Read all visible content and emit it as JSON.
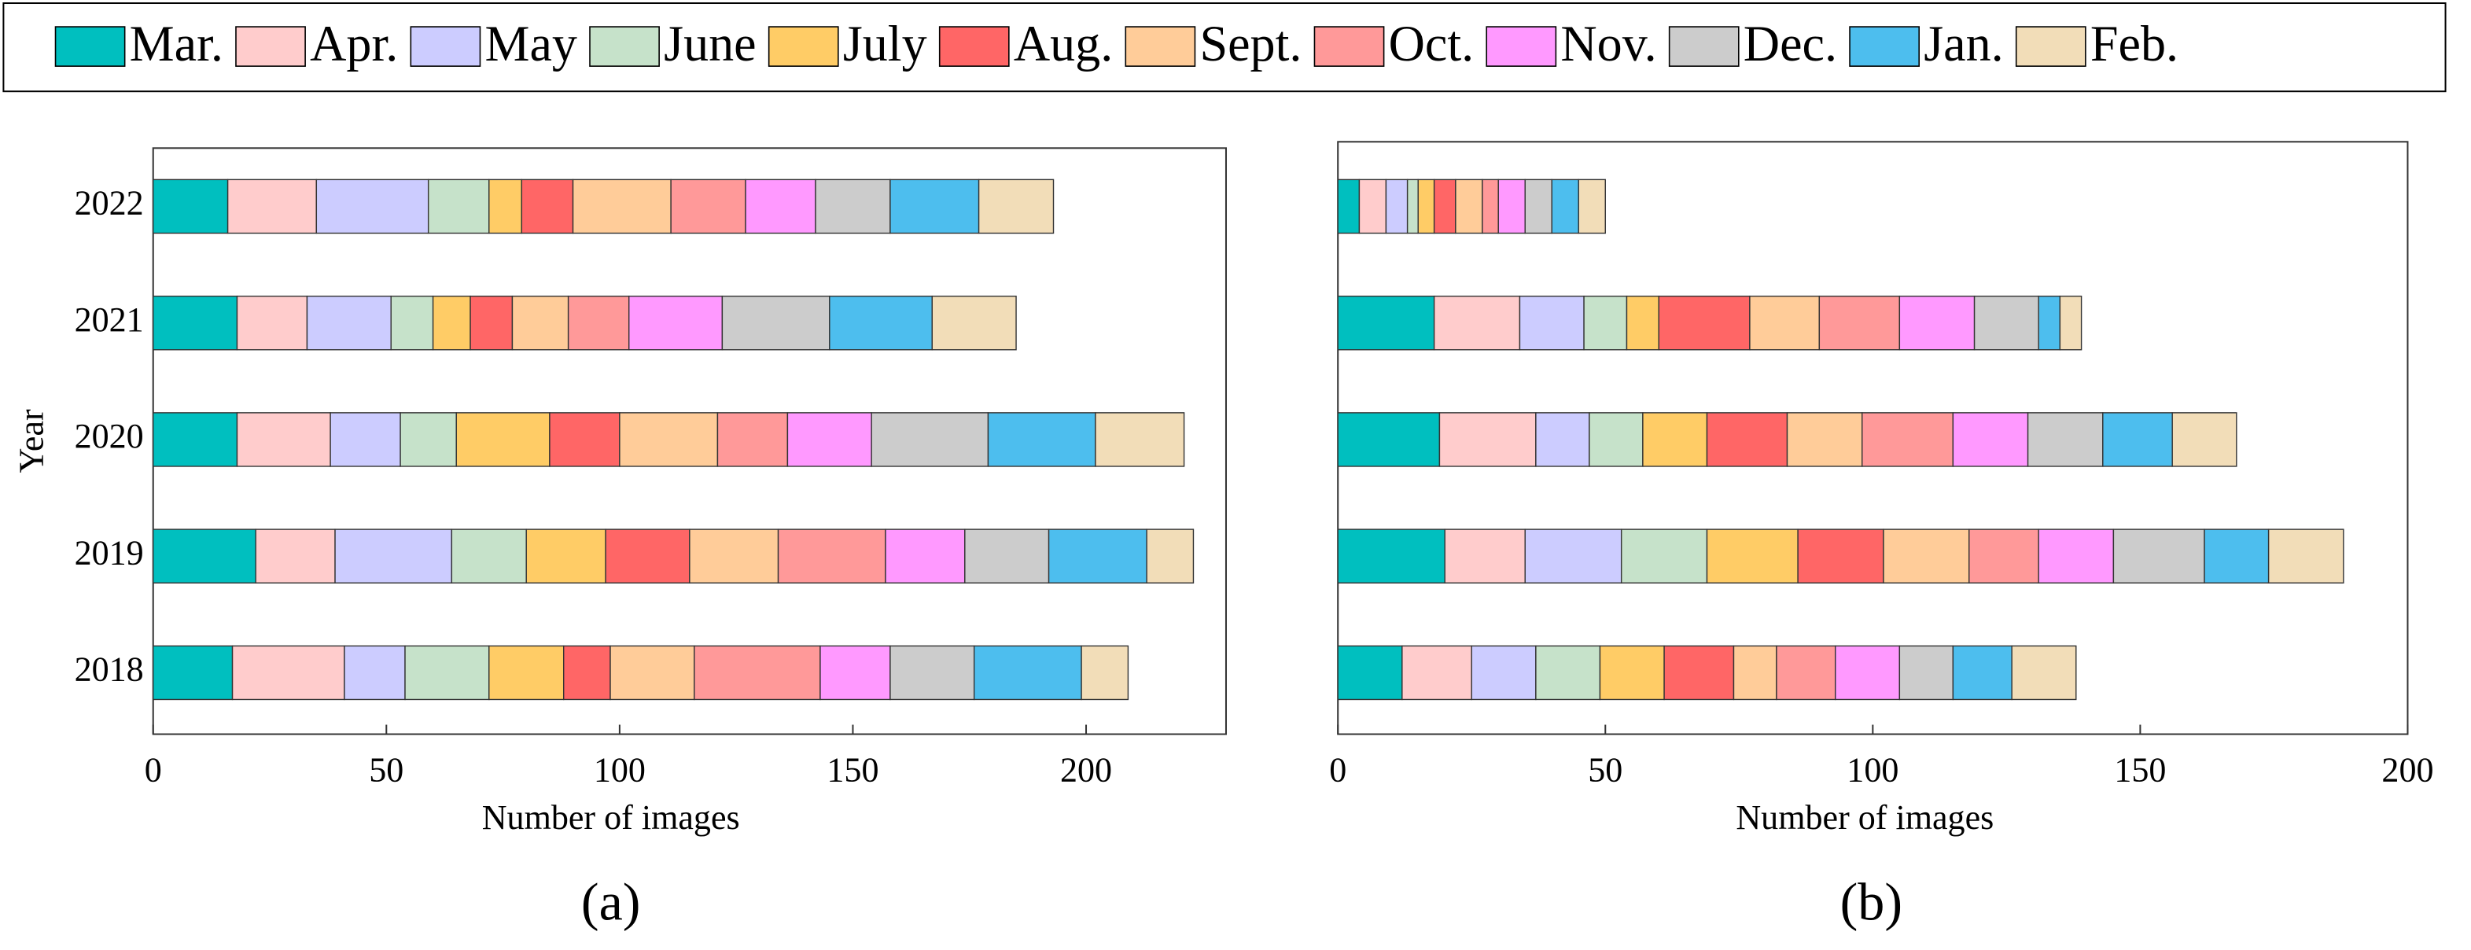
{
  "chart_data": [
    {
      "type": "bar",
      "orientation": "horizontal",
      "stacked": true,
      "label": "(a)",
      "ylabel": "Year",
      "xlabel": "Number of images",
      "categories": [
        "2018",
        "2019",
        "2020",
        "2021",
        "2022"
      ],
      "xlim": [
        0,
        230
      ],
      "xticks": [
        0,
        50,
        100,
        150,
        200
      ],
      "series": [
        {
          "name": "Mar.",
          "color": "#00BFBF",
          "values": [
            17,
            22,
            18,
            18,
            16
          ]
        },
        {
          "name": "Apr.",
          "color": "#FFCCCC",
          "values": [
            24,
            17,
            20,
            15,
            19
          ]
        },
        {
          "name": "May",
          "color": "#CCCCFF",
          "values": [
            13,
            25,
            15,
            18,
            24
          ]
        },
        {
          "name": "June",
          "color": "#C6E2CA",
          "values": [
            18,
            16,
            12,
            9,
            13
          ]
        },
        {
          "name": "July",
          "color": "#FFCC66",
          "values": [
            16,
            17,
            20,
            8,
            7
          ]
        },
        {
          "name": "Aug.",
          "color": "#FF6666",
          "values": [
            10,
            18,
            15,
            9,
            11
          ]
        },
        {
          "name": "Sept.",
          "color": "#FFCC99",
          "values": [
            18,
            19,
            21,
            12,
            21
          ]
        },
        {
          "name": "Oct.",
          "color": "#FF9999",
          "values": [
            27,
            23,
            15,
            13,
            16
          ]
        },
        {
          "name": "Nov.",
          "color": "#FF99FF",
          "values": [
            15,
            17,
            18,
            20,
            15
          ]
        },
        {
          "name": "Dec.",
          "color": "#CCCCCC",
          "values": [
            18,
            18,
            25,
            23,
            16
          ]
        },
        {
          "name": "Jan.",
          "color": "#4DBEEE",
          "values": [
            23,
            21,
            23,
            22,
            19
          ]
        },
        {
          "name": "Feb.",
          "color": "#F2DDB8",
          "values": [
            10,
            10,
            19,
            18,
            16
          ]
        }
      ]
    },
    {
      "type": "bar",
      "orientation": "horizontal",
      "stacked": true,
      "label": "(b)",
      "xlabel": "Number of images",
      "categories": [
        null,
        null,
        null,
        null,
        null
      ],
      "xlim": [
        0,
        200
      ],
      "xticks": [
        0,
        50,
        100,
        150,
        200
      ],
      "series": [
        {
          "color": "#00BFBF",
          "values": [
            12,
            20,
            19,
            18,
            4
          ]
        },
        {
          "color": "#FFCCCC",
          "values": [
            13,
            15,
            18,
            16,
            5
          ]
        },
        {
          "color": "#CCCCFF",
          "values": [
            12,
            18,
            10,
            12,
            4
          ]
        },
        {
          "color": "#C6E2CA",
          "values": [
            12,
            16,
            10,
            8,
            2
          ]
        },
        {
          "color": "#FFCC66",
          "values": [
            12,
            17,
            12,
            6,
            3
          ]
        },
        {
          "color": "#FF6666",
          "values": [
            13,
            16,
            15,
            17,
            4
          ]
        },
        {
          "color": "#FFCC99",
          "values": [
            8,
            16,
            14,
            13,
            5
          ]
        },
        {
          "color": "#FF9999",
          "values": [
            11,
            13,
            17,
            15,
            3
          ]
        },
        {
          "color": "#FF99FF",
          "values": [
            12,
            14,
            14,
            14,
            5
          ]
        },
        {
          "color": "#CCCCCC",
          "values": [
            10,
            17,
            14,
            12,
            5
          ]
        },
        {
          "color": "#4DBEEE",
          "values": [
            11,
            12,
            13,
            4,
            5
          ]
        },
        {
          "color": "#F2DDB8",
          "values": [
            12,
            14,
            12,
            4,
            5
          ]
        }
      ]
    }
  ]
}
